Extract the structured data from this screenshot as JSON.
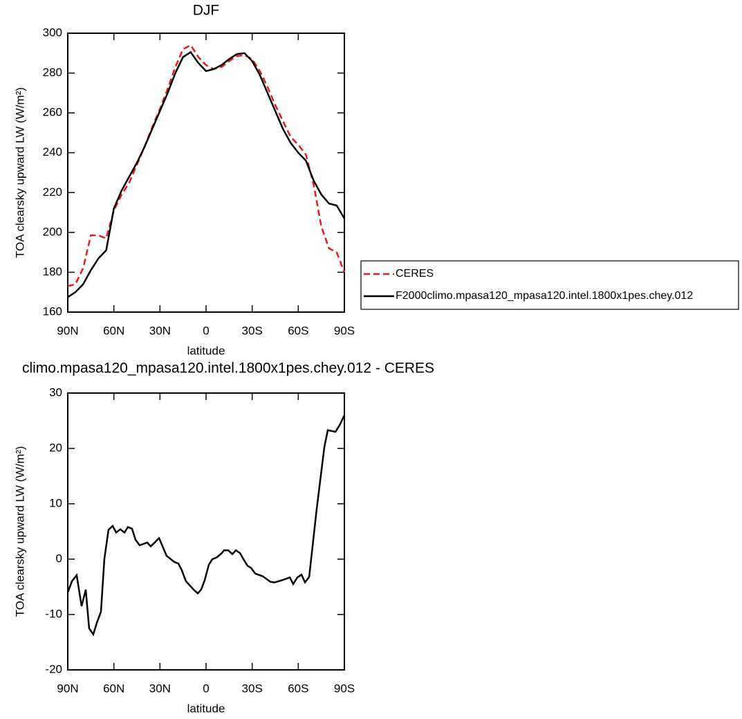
{
  "chart_data": [
    {
      "type": "line",
      "title": "DJF",
      "xlabel": "latitude",
      "ylabel": "TOA clearsky upward LW (W/m²)",
      "x": [
        90,
        85,
        80,
        75,
        70,
        65,
        60,
        55,
        50,
        45,
        40,
        35,
        30,
        25,
        20,
        15,
        10,
        5,
        0,
        -5,
        -10,
        -15,
        -20,
        -25,
        -30,
        -35,
        -40,
        -45,
        -50,
        -55,
        -60,
        -65,
        -70,
        -75,
        -80,
        -85,
        -90
      ],
      "series": [
        {
          "name": "CERES",
          "color": "#e41a1c",
          "style": "dashed",
          "values": [
            173,
            174,
            182,
            198.5,
            198.5,
            197,
            211,
            219,
            225,
            234,
            243,
            253,
            262,
            272,
            283,
            292,
            294,
            288,
            284,
            282,
            283,
            286,
            288.5,
            289,
            287,
            281,
            273,
            264,
            256,
            248,
            244,
            239,
            224,
            203,
            192,
            190,
            180
          ]
        },
        {
          "name": "F2000climo.mpasa120_mpasa120.intel.1800x1pes.chey.012",
          "color": "#000000",
          "style": "solid",
          "values": [
            167.5,
            170,
            174,
            181,
            187,
            191,
            212,
            221,
            228,
            235,
            243,
            252,
            261,
            270,
            280,
            288,
            290.5,
            285,
            281,
            282,
            284,
            287,
            289.5,
            290,
            286,
            279,
            270,
            261,
            252,
            245,
            240,
            236,
            226,
            219,
            214.5,
            213.5,
            207
          ]
        }
      ],
      "xlim": [
        90,
        -90
      ],
      "xticks": [
        {
          "value": 90,
          "label": "90N"
        },
        {
          "value": 60,
          "label": "60N"
        },
        {
          "value": 30,
          "label": "30N"
        },
        0,
        {
          "value": -30,
          "label": "30S"
        },
        {
          "value": -60,
          "label": "60S"
        },
        {
          "value": -90,
          "label": "90S"
        }
      ],
      "ylim": [
        160,
        300
      ],
      "yticks": [
        160,
        180,
        200,
        220,
        240,
        260,
        280,
        300
      ],
      "legend": "right"
    },
    {
      "type": "line",
      "title": "climo.mpasa120_mpasa120.intel.1800x1pes.chey.012 - CERES",
      "xlabel": "latitude",
      "ylabel": "TOA clearsky upward LW (W/m²)",
      "x": [
        90,
        87.3,
        84.2,
        81,
        78.3,
        76.1,
        73.4,
        71.1,
        68.4,
        66.2,
        63.5,
        60.8,
        58.5,
        55.8,
        53.1,
        50.9,
        48.2,
        45.9,
        43.2,
        38.3,
        36,
        30.6,
        25.7,
        20.7,
        18,
        15.8,
        13.1,
        8.1,
        5.4,
        3.2,
        0.9,
        -1.8,
        -4.1,
        -6.8,
        -9.9,
        -11.7,
        -14.4,
        -17.1,
        -19.4,
        -22.1,
        -24.3,
        -27,
        -29.3,
        -32,
        -36.9,
        -41.9,
        -44.6,
        -49.5,
        -54.5,
        -56.7,
        -59.4,
        -62.1,
        -64.4,
        -67.1,
        -72,
        -77,
        -79.2,
        -84.2,
        -86.9,
        -90
      ],
      "values": [
        -6,
        -4,
        -2.9,
        -8.5,
        -5.5,
        -12.5,
        -13.6,
        -11.5,
        -9.5,
        0,
        5.3,
        6,
        4.8,
        5.4,
        4.8,
        5.8,
        5.5,
        3.5,
        2.5,
        3,
        2.3,
        3.8,
        0.6,
        -0.5,
        -0.8,
        -2,
        -4,
        -5.5,
        -6.2,
        -5.5,
        -3.8,
        -1,
        0,
        0.3,
        1,
        1.6,
        1.6,
        0.9,
        1.6,
        1.1,
        0,
        -1.2,
        -1.6,
        -2.6,
        -3.1,
        -4.1,
        -4.2,
        -3.8,
        -3.3,
        -4.5,
        -3.3,
        -2.8,
        -4.2,
        -3.2,
        9.1,
        20.3,
        23.3,
        23,
        24.2,
        26
      ],
      "color": "#000000",
      "xlim": [
        90,
        -90
      ],
      "xticks": [
        {
          "value": 90,
          "label": "90N"
        },
        {
          "value": 60,
          "label": "60N"
        },
        {
          "value": 30,
          "label": "30N"
        },
        0,
        {
          "value": -30,
          "label": "30S"
        },
        {
          "value": -60,
          "label": "60S"
        },
        {
          "value": -90,
          "label": "90S"
        }
      ],
      "ylim": [
        -20,
        30
      ],
      "yticks": [
        -20,
        -10,
        0,
        10,
        20,
        30
      ]
    }
  ]
}
